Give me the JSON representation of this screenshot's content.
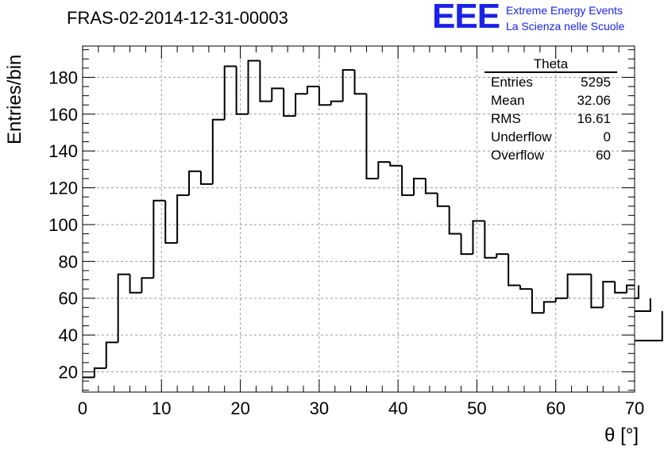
{
  "title": "FRAS-02-2014-12-31-00003",
  "logo": {
    "mark": "EEE",
    "line1": "Extreme Energy Events",
    "line2": "La Scienza nelle Scuole",
    "color": "#1a22e8"
  },
  "stats": {
    "name": "Theta",
    "rows": [
      {
        "label": "Entries",
        "value": "5295"
      },
      {
        "label": "Mean",
        "value": "32.06"
      },
      {
        "label": "RMS",
        "value": "16.61"
      },
      {
        "label": "Underflow",
        "value": "0"
      },
      {
        "label": "Overflow",
        "value": "60"
      }
    ]
  },
  "chart_data": {
    "type": "bar",
    "style": "step-histogram",
    "title": "FRAS-02-2014-12-31-00003",
    "xlabel": "θ [°]",
    "ylabel": "Entries/bin",
    "xlim": [
      0,
      70
    ],
    "ylim": [
      9,
      197
    ],
    "bin_width": 1.5,
    "x_ticks": [
      0,
      10,
      20,
      30,
      40,
      50,
      60,
      70
    ],
    "y_ticks": [
      20,
      40,
      60,
      80,
      100,
      120,
      140,
      160,
      180
    ],
    "grid": true,
    "bin_edges_start": 0,
    "values": [
      17,
      22,
      36,
      73,
      63,
      71,
      113,
      90,
      116,
      129,
      122,
      157,
      186,
      160,
      189,
      167,
      174,
      159,
      171,
      175,
      165,
      167,
      184,
      171,
      125,
      134,
      132,
      116,
      125,
      117,
      110,
      95,
      84,
      102,
      82,
      84,
      67,
      65,
      52,
      58,
      60,
      73,
      73,
      55,
      69,
      63,
      67,
      60,
      53,
      37
    ],
    "line_color": "#000000"
  }
}
